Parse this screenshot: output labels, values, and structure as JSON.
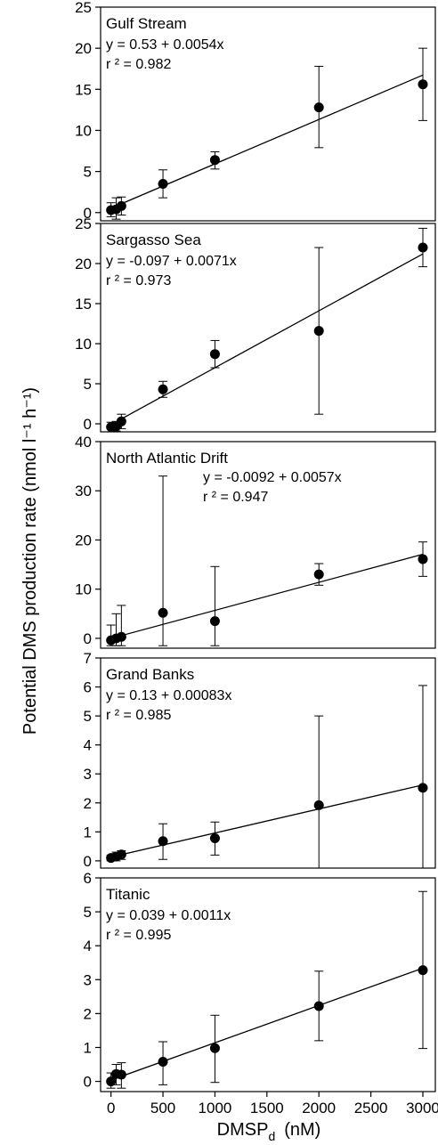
{
  "chart_data": [
    {
      "type": "scatter",
      "title": "Gulf Stream",
      "equation": "y = 0.53 + 0.0054x",
      "r2": "r ² = 0.982",
      "equation_position": "top-left",
      "ylim": [
        -1,
        25
      ],
      "yticks": [
        0,
        5,
        10,
        15,
        20,
        25
      ],
      "xlim": [
        -100,
        3120
      ],
      "points": [
        {
          "x": 0,
          "y": 0.3,
          "lo": -0.5,
          "hi": 1.2
        },
        {
          "x": 50,
          "y": 0.4,
          "lo": -0.8,
          "hi": 1.8
        },
        {
          "x": 100,
          "y": 0.8,
          "lo": -0.3,
          "hi": 1.9
        },
        {
          "x": 500,
          "y": 3.5,
          "lo": 1.8,
          "hi": 5.2
        },
        {
          "x": 1000,
          "y": 6.4,
          "lo": 5.3,
          "hi": 7.4
        },
        {
          "x": 2000,
          "y": 12.8,
          "lo": 7.9,
          "hi": 17.8
        },
        {
          "x": 3000,
          "y": 15.6,
          "lo": 11.2,
          "hi": 20.0
        }
      ],
      "fit": {
        "intercept": 0.53,
        "slope": 0.0054,
        "x_range": [
          0,
          3000
        ]
      }
    },
    {
      "type": "scatter",
      "title": "Sargasso Sea",
      "equation": "y = -0.097 + 0.0071x",
      "r2": "r ² = 0.973",
      "equation_position": "top-left",
      "ylim": [
        -1,
        25
      ],
      "yticks": [
        0,
        5,
        10,
        15,
        20,
        25
      ],
      "xlim": [
        -100,
        3120
      ],
      "points": [
        {
          "x": 0,
          "y": -0.4,
          "lo": -1.0,
          "hi": 0.2
        },
        {
          "x": 50,
          "y": -0.3,
          "lo": -0.9,
          "hi": 0.3
        },
        {
          "x": 100,
          "y": 0.3,
          "lo": -0.6,
          "hi": 1.2
        },
        {
          "x": 500,
          "y": 4.3,
          "lo": 3.3,
          "hi": 5.3
        },
        {
          "x": 1000,
          "y": 8.7,
          "lo": 7.0,
          "hi": 10.4
        },
        {
          "x": 2000,
          "y": 11.6,
          "lo": 1.2,
          "hi": 22.0
        },
        {
          "x": 3000,
          "y": 22.0,
          "lo": 19.6,
          "hi": 24.4
        }
      ],
      "fit": {
        "intercept": -0.097,
        "slope": 0.0071,
        "x_range": [
          0,
          3000
        ]
      }
    },
    {
      "type": "scatter",
      "title": "North Atlantic Drift",
      "equation": "y = -0.0092 + 0.0057x",
      "r2": "r ² = 0.947",
      "equation_position": "top-center",
      "ylim": [
        -2,
        40
      ],
      "yticks": [
        0,
        10,
        20,
        30,
        40
      ],
      "xlim": [
        -100,
        3120
      ],
      "points": [
        {
          "x": 0,
          "y": -0.4,
          "lo": -1.5,
          "hi": 2.7
        },
        {
          "x": 50,
          "y": 0.0,
          "lo": -1.5,
          "hi": 5.0
        },
        {
          "x": 100,
          "y": 0.3,
          "lo": -1.5,
          "hi": 6.7
        },
        {
          "x": 500,
          "y": 5.2,
          "lo": -1.5,
          "hi": 33.0
        },
        {
          "x": 1000,
          "y": 3.5,
          "lo": -1.5,
          "hi": 14.6
        },
        {
          "x": 2000,
          "y": 13.0,
          "lo": 10.8,
          "hi": 15.2
        },
        {
          "x": 3000,
          "y": 16.1,
          "lo": 12.6,
          "hi": 19.6
        }
      ],
      "fit": {
        "intercept": -0.0092,
        "slope": 0.0057,
        "x_range": [
          0,
          3000
        ]
      }
    },
    {
      "type": "scatter",
      "title": "Grand Banks",
      "equation": "y = 0.13 + 0.00083x",
      "r2": "r ² = 0.985",
      "equation_position": "top-left",
      "ylim": [
        -0.25,
        7
      ],
      "yticks": [
        0,
        1,
        2,
        3,
        4,
        5,
        6,
        7
      ],
      "xlim": [
        -100,
        3120
      ],
      "points": [
        {
          "x": 0,
          "y": 0.1,
          "lo": 0.0,
          "hi": 0.2
        },
        {
          "x": 50,
          "y": 0.15,
          "lo": 0.0,
          "hi": 0.3
        },
        {
          "x": 100,
          "y": 0.22,
          "lo": 0.05,
          "hi": 0.35
        },
        {
          "x": 500,
          "y": 0.68,
          "lo": 0.05,
          "hi": 1.28
        },
        {
          "x": 1000,
          "y": 0.78,
          "lo": 0.2,
          "hi": 1.34
        },
        {
          "x": 2000,
          "y": 1.92,
          "lo": -0.25,
          "hi": 5.0
        },
        {
          "x": 3000,
          "y": 2.52,
          "lo": -0.25,
          "hi": 6.05
        }
      ],
      "fit": {
        "intercept": 0.13,
        "slope": 0.00083,
        "x_range": [
          0,
          3000
        ]
      }
    },
    {
      "type": "scatter",
      "title": "Titanic",
      "equation": "y = 0.039 + 0.0011x",
      "r2": "r ² = 0.995",
      "equation_position": "top-left",
      "ylim": [
        -0.3,
        6
      ],
      "yticks": [
        0,
        1,
        2,
        3,
        4,
        5,
        6
      ],
      "xlim": [
        -100,
        3120
      ],
      "xticks": [
        0,
        500,
        1000,
        1500,
        2000,
        2500,
        3000
      ],
      "points": [
        {
          "x": 0,
          "y": 0.0,
          "lo": -0.2,
          "hi": 0.25
        },
        {
          "x": 50,
          "y": 0.22,
          "lo": -0.1,
          "hi": 0.5
        },
        {
          "x": 100,
          "y": 0.2,
          "lo": -0.2,
          "hi": 0.55
        },
        {
          "x": 500,
          "y": 0.58,
          "lo": -0.1,
          "hi": 1.17
        },
        {
          "x": 1000,
          "y": 0.98,
          "lo": -0.03,
          "hi": 1.95
        },
        {
          "x": 2000,
          "y": 2.22,
          "lo": 1.2,
          "hi": 3.25
        },
        {
          "x": 3000,
          "y": 3.28,
          "lo": 0.97,
          "hi": 5.6
        }
      ],
      "fit": {
        "intercept": 0.039,
        "slope": 0.0011,
        "x_range": [
          0,
          3000
        ]
      }
    }
  ],
  "axes": {
    "ylabel": "Potential DMS production rate (nmol l⁻¹ h⁻¹)",
    "xlabel": "DMSPd (nM)",
    "xlabel_main": "DMSP",
    "xlabel_sub": "d",
    "xlabel_unit": "(nM)"
  },
  "colors": {
    "ink": "#000000",
    "background": "#ffffff"
  }
}
